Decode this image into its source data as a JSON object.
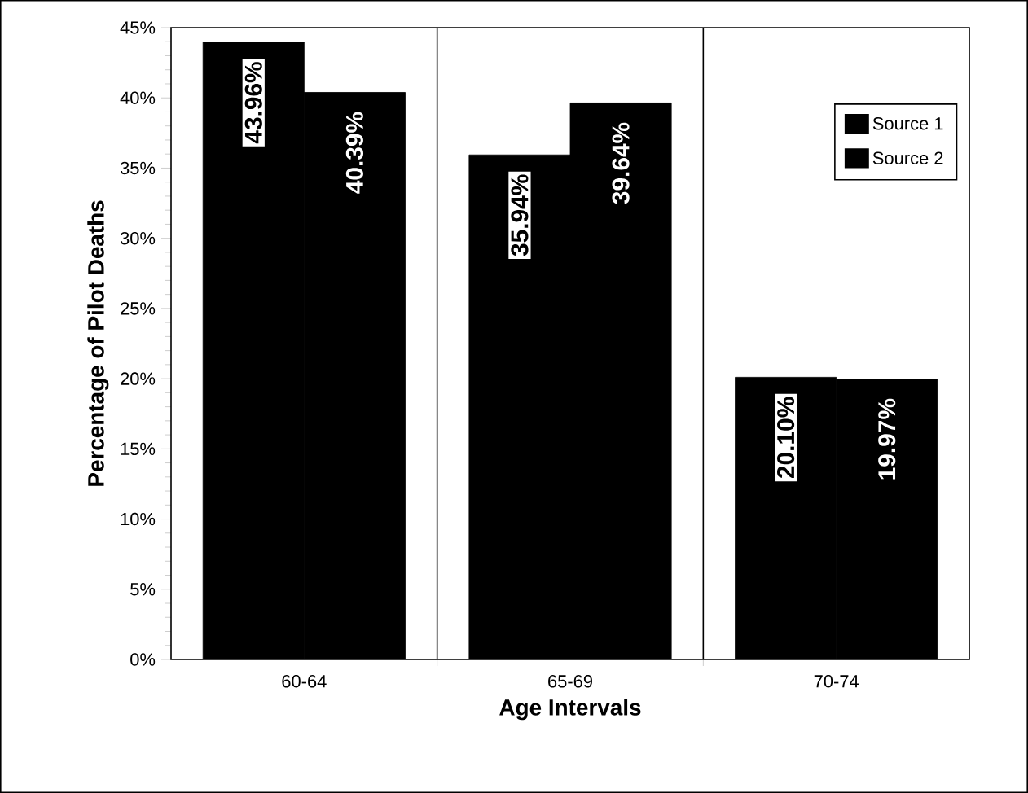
{
  "chart_data": {
    "type": "bar",
    "xlabel": "Age Intervals",
    "ylabel": "Percentage of Pilot Deaths",
    "categories": [
      "60-64",
      "65-69",
      "70-74"
    ],
    "series": [
      {
        "name": "Source 1",
        "color": "#000000",
        "values": [
          43.96,
          35.94,
          20.1
        ],
        "value_labels": [
          "43.96%",
          "35.94%",
          "20.10%"
        ]
      },
      {
        "name": "Source 2",
        "color": "#000000",
        "values": [
          40.39,
          39.64,
          19.97
        ],
        "value_labels": [
          "40.39%",
          "39.64%",
          "19.97%"
        ]
      }
    ],
    "ylim": [
      0,
      45
    ],
    "yticks": [
      {
        "value": 0,
        "label": "0%"
      },
      {
        "value": 5,
        "label": "5%"
      },
      {
        "value": 10,
        "label": "10%"
      },
      {
        "value": 15,
        "label": "15%"
      },
      {
        "value": 20,
        "label": "20%"
      },
      {
        "value": 25,
        "label": "25%"
      },
      {
        "value": 30,
        "label": "30%"
      },
      {
        "value": 35,
        "label": "35%"
      },
      {
        "value": 40,
        "label": "40%"
      },
      {
        "value": 45,
        "label": "45%"
      }
    ],
    "grid": "x",
    "legend": "top right"
  }
}
